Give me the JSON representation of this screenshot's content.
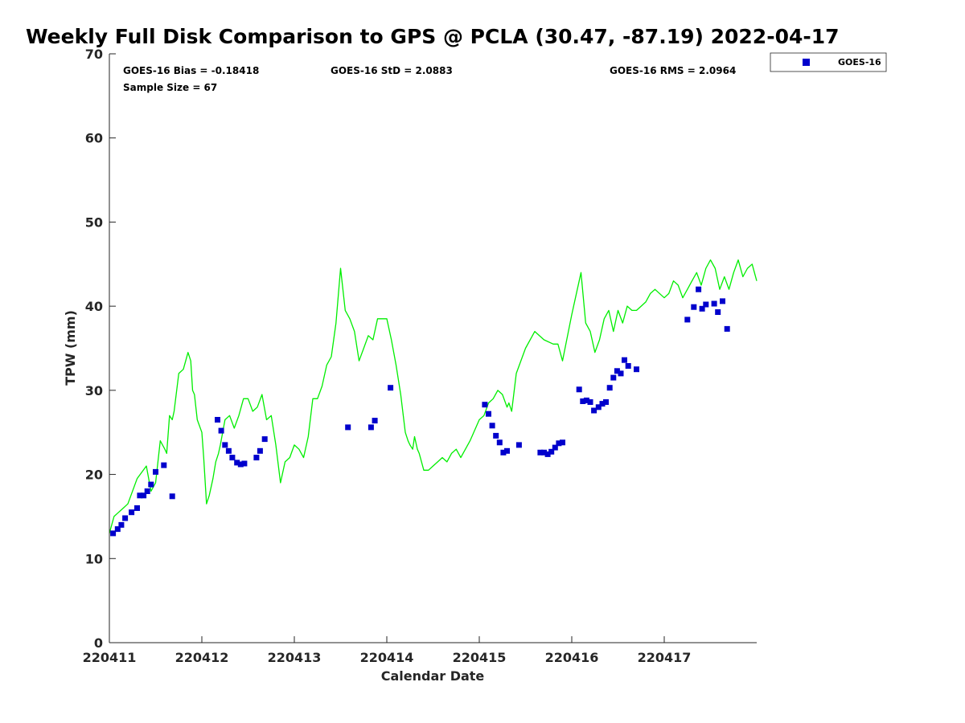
{
  "chart_data": {
    "type": "scatter",
    "title": "Weekly Full Disk Comparison to GPS @ PCLA (30.47, -87.19) 2022-04-17",
    "xlabel": "Calendar Date",
    "ylabel": "TPW (mm)",
    "xlim": [
      0,
      7
    ],
    "ylim": [
      0,
      70
    ],
    "yticks": [
      0,
      10,
      20,
      30,
      40,
      50,
      60,
      70
    ],
    "xticks": [
      {
        "value": 0,
        "label": "220411"
      },
      {
        "value": 1,
        "label": "220412"
      },
      {
        "value": 2,
        "label": "220413"
      },
      {
        "value": 3,
        "label": "220414"
      },
      {
        "value": 4,
        "label": "220415"
      },
      {
        "value": 5,
        "label": "220416"
      },
      {
        "value": 6,
        "label": "220417"
      }
    ],
    "stats": {
      "bias": "GOES-16 Bias = -0.18418",
      "std": "GOES-16 StD = 2.0883",
      "rms": "GOES-16 RMS = 2.0964",
      "sample": "Sample Size = 67"
    },
    "legend": {
      "label": "GOES-16",
      "position": "top-right-outside"
    },
    "colors": {
      "gps_line": "#00ee00",
      "goes_marker": "#0000cc"
    },
    "series": [
      {
        "name": "GPS",
        "style": "line",
        "x": [
          0.0,
          0.05,
          0.1,
          0.15,
          0.2,
          0.3,
          0.4,
          0.45,
          0.5,
          0.55,
          0.6,
          0.62,
          0.65,
          0.68,
          0.7,
          0.75,
          0.8,
          0.85,
          0.88,
          0.9,
          0.92,
          0.95,
          1.0,
          1.02,
          1.05,
          1.08,
          1.12,
          1.15,
          1.18,
          1.2,
          1.25,
          1.3,
          1.35,
          1.4,
          1.45,
          1.5,
          1.55,
          1.6,
          1.65,
          1.7,
          1.75,
          1.8,
          1.85,
          1.9,
          1.95,
          2.0,
          2.05,
          2.1,
          2.15,
          2.2,
          2.25,
          2.3,
          2.35,
          2.4,
          2.45,
          2.5,
          2.55,
          2.6,
          2.65,
          2.7,
          2.75,
          2.8,
          2.85,
          2.9,
          3.0,
          3.05,
          3.1,
          3.15,
          3.2,
          3.23,
          3.25,
          3.28,
          3.3,
          3.33,
          3.35,
          3.4,
          3.45,
          3.5,
          3.55,
          3.6,
          3.65,
          3.7,
          3.75,
          3.8,
          3.9,
          4.0,
          4.05,
          4.1,
          4.15,
          4.2,
          4.25,
          4.3,
          4.32,
          4.35,
          4.4,
          4.5,
          4.6,
          4.7,
          4.8,
          4.85,
          4.9,
          5.0,
          5.1,
          5.15,
          5.2,
          5.25,
          5.3,
          5.35,
          5.4,
          5.45,
          5.5,
          5.55,
          5.6,
          5.65,
          5.7,
          5.75,
          5.8,
          5.85,
          5.9,
          6.0,
          6.05,
          6.1,
          6.15,
          6.2,
          6.25,
          6.3,
          6.35,
          6.4,
          6.45,
          6.5,
          6.55,
          6.6,
          6.65,
          6.7,
          6.75,
          6.8,
          6.85,
          6.9,
          6.95,
          7.0
        ],
        "y": [
          13.0,
          15.0,
          15.5,
          16.0,
          16.5,
          19.5,
          21.0,
          18.0,
          19.0,
          24.0,
          23.0,
          22.5,
          27.0,
          26.5,
          27.5,
          32.0,
          32.5,
          34.5,
          33.5,
          30.0,
          29.5,
          26.5,
          25.0,
          22.0,
          16.5,
          17.5,
          19.5,
          21.5,
          22.5,
          23.5,
          26.5,
          27.0,
          25.5,
          27.0,
          29.0,
          29.0,
          27.5,
          28.0,
          29.5,
          26.5,
          27.0,
          23.5,
          19.0,
          21.5,
          22.0,
          23.5,
          23.0,
          22.0,
          24.5,
          29.0,
          29.0,
          30.5,
          33.0,
          34.0,
          38.0,
          44.5,
          39.5,
          38.5,
          37.0,
          33.5,
          35.0,
          36.5,
          36.0,
          38.5,
          38.5,
          36.0,
          33.0,
          29.5,
          25.0,
          24.0,
          23.5,
          23.0,
          24.5,
          23.0,
          22.5,
          20.5,
          20.5,
          21.0,
          21.5,
          22.0,
          21.5,
          22.5,
          23.0,
          22.0,
          24.0,
          26.5,
          27.0,
          28.5,
          29.0,
          30.0,
          29.5,
          28.0,
          28.5,
          27.5,
          32.0,
          35.0,
          37.0,
          36.0,
          35.5,
          35.5,
          33.5,
          39.0,
          44.0,
          38.0,
          37.0,
          34.5,
          36.0,
          38.5,
          39.5,
          37.0,
          39.5,
          38.0,
          40.0,
          39.5,
          39.5,
          40.0,
          40.5,
          41.5,
          42.0,
          41.0,
          41.5,
          43.0,
          42.5,
          41.0,
          42.0,
          43.0,
          44.0,
          42.5,
          44.5,
          45.5,
          44.5,
          42.0,
          43.5,
          42.0,
          44.0,
          45.5,
          43.5,
          44.5,
          45.0,
          43.0
        ]
      },
      {
        "name": "GOES-16",
        "style": "marker",
        "x": [
          0.04,
          0.09,
          0.13,
          0.17,
          0.24,
          0.3,
          0.33,
          0.37,
          0.41,
          0.45,
          0.5,
          0.59,
          0.68,
          1.17,
          1.21,
          1.25,
          1.29,
          1.33,
          1.38,
          1.42,
          1.46,
          1.59,
          1.63,
          1.68,
          2.58,
          2.83,
          2.87,
          3.04,
          4.06,
          4.1,
          4.14,
          4.18,
          4.22,
          4.26,
          4.3,
          4.43,
          4.66,
          4.7,
          4.74,
          4.78,
          4.82,
          4.86,
          4.9,
          5.08,
          5.12,
          5.16,
          5.2,
          5.24,
          5.29,
          5.33,
          5.37,
          5.41,
          5.45,
          5.49,
          5.53,
          5.57,
          5.61,
          5.7,
          6.25,
          6.32,
          6.37,
          6.41,
          6.45,
          6.54,
          6.58,
          6.63,
          6.68
        ],
        "y": [
          13.0,
          13.5,
          14.0,
          14.8,
          15.5,
          16.0,
          17.5,
          17.5,
          18.0,
          18.8,
          20.3,
          21.1,
          17.4,
          26.5,
          25.2,
          23.5,
          22.8,
          22.0,
          21.4,
          21.2,
          21.3,
          22.0,
          22.8,
          24.2,
          25.6,
          25.6,
          26.4,
          30.3,
          28.3,
          27.2,
          25.8,
          24.6,
          23.8,
          22.6,
          22.8,
          23.5,
          22.6,
          22.6,
          22.4,
          22.7,
          23.2,
          23.7,
          23.8,
          30.1,
          28.7,
          28.8,
          28.6,
          27.6,
          28.0,
          28.4,
          28.6,
          30.3,
          31.5,
          32.3,
          32.0,
          33.6,
          32.9,
          32.5,
          38.4,
          39.9,
          42.0,
          39.7,
          40.2,
          40.3,
          39.3,
          40.6,
          37.3
        ]
      }
    ]
  }
}
